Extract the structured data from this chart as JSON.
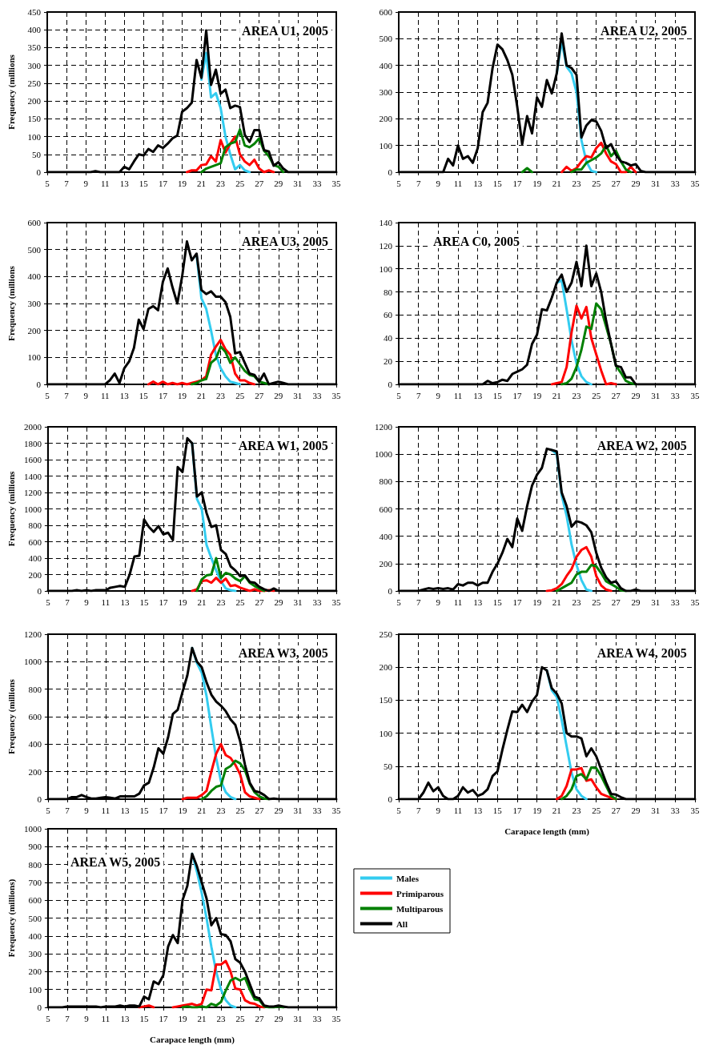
{
  "chart_data": [
    {
      "type": "line",
      "title": "AREA U1, 2005",
      "ylabel": "Frequency (millions",
      "xlim": [
        5,
        35
      ],
      "xticks": [
        5,
        7,
        9,
        11,
        13,
        15,
        17,
        19,
        21,
        23,
        25,
        27,
        29,
        31,
        33,
        35
      ],
      "ylim": [
        0,
        450
      ],
      "yticks": [
        0,
        50,
        100,
        150,
        200,
        250,
        300,
        350,
        400,
        450
      ],
      "grid": true,
      "series": [
        {
          "color": "#33ccf0",
          "x": [
            21,
            21.5,
            22,
            22.5,
            23,
            23.5,
            24,
            24.5,
            25,
            25.5,
            26
          ],
          "values": [
            260,
            335,
            210,
            222,
            180,
            100,
            50,
            8,
            20,
            5,
            0
          ]
        },
        {
          "color": "#ff0000",
          "x": [
            19.5,
            20,
            20.5,
            21,
            21.5,
            22,
            22.5,
            23,
            23.5,
            24,
            24.5,
            25,
            25.5,
            26,
            26.5,
            27,
            27.5,
            28,
            28.5
          ],
          "values": [
            0,
            5,
            5,
            20,
            22,
            45,
            30,
            90,
            55,
            80,
            100,
            50,
            30,
            20,
            35,
            10,
            0,
            5,
            0
          ]
        },
        {
          "color": "#008000",
          "x": [
            21,
            21.5,
            22,
            22.5,
            23,
            23.5,
            24,
            24.5,
            25,
            25.5,
            26,
            26.5,
            27,
            27.5,
            28,
            28.5,
            29,
            29.5
          ],
          "values": [
            0,
            10,
            15,
            20,
            25,
            70,
            80,
            85,
            120,
            75,
            70,
            80,
            95,
            60,
            45,
            20,
            15,
            0
          ]
        },
        {
          "color": "#000000",
          "x": [
            5,
            9.5,
            10,
            10.5,
            12.5,
            13,
            13.5,
            14,
            14.5,
            15,
            15.5,
            16,
            16.5,
            17,
            17.5,
            18,
            18.5,
            19,
            19.5,
            20,
            20.5,
            21,
            21.5,
            22,
            22.5,
            23,
            23.5,
            24,
            24.5,
            25,
            25.5,
            26,
            26.5,
            27,
            27.5,
            28,
            28.5,
            29,
            29.5,
            30,
            35
          ],
          "values": [
            0,
            0,
            3,
            0,
            0,
            15,
            8,
            30,
            50,
            47,
            65,
            57,
            75,
            68,
            80,
            95,
            103,
            170,
            180,
            195,
            315,
            265,
            398,
            245,
            288,
            220,
            232,
            180,
            187,
            183,
            105,
            85,
            118,
            118,
            62,
            58,
            18,
            28,
            10,
            0,
            0
          ]
        }
      ]
    },
    {
      "type": "line",
      "title": "AREA U2, 2005",
      "xlim": [
        5,
        35
      ],
      "xticks": [
        5,
        7,
        9,
        11,
        13,
        15,
        17,
        19,
        21,
        23,
        25,
        27,
        29,
        31,
        33,
        35
      ],
      "ylim": [
        0,
        600
      ],
      "yticks": [
        0,
        100,
        200,
        300,
        400,
        500,
        600
      ],
      "grid": true,
      "series": [
        {
          "color": "#33ccf0",
          "x": [
            21,
            21.5,
            22,
            22.5,
            23,
            23.5,
            24,
            24.5,
            25
          ],
          "values": [
            370,
            490,
            395,
            370,
            300,
            120,
            40,
            5,
            0
          ]
        },
        {
          "color": "#ff0000",
          "x": [
            21.5,
            22,
            22.5,
            23,
            23.5,
            24,
            24.5,
            25,
            25.5,
            26,
            26.5,
            27,
            27.5,
            28,
            28.5,
            29
          ],
          "values": [
            0,
            20,
            5,
            15,
            40,
            60,
            55,
            90,
            110,
            70,
            40,
            30,
            0,
            0,
            20,
            0
          ]
        },
        {
          "color": "#008000",
          "x": [
            17.5,
            18,
            18.5,
            19,
            22.5,
            23,
            23.5,
            24,
            24.5,
            25,
            25.5,
            26,
            26.5,
            27,
            27.5,
            28,
            28.5
          ],
          "values": [
            0,
            15,
            0,
            null,
            0,
            10,
            10,
            35,
            45,
            55,
            70,
            100,
            60,
            80,
            40,
            10,
            0
          ]
        },
        {
          "color": "#000000",
          "x": [
            5,
            9,
            9.5,
            10,
            10.5,
            11,
            11.5,
            12,
            12.5,
            13,
            13.5,
            14,
            14.5,
            15,
            15.5,
            16,
            16.5,
            17,
            17.5,
            18,
            18.5,
            19,
            19.5,
            20,
            20.5,
            21,
            21.5,
            22,
            22.5,
            23,
            23.5,
            24,
            24.5,
            25,
            25.5,
            26,
            26.5,
            27,
            27.5,
            28,
            28.5,
            29,
            29.5,
            30,
            35
          ],
          "values": [
            0,
            0,
            0,
            50,
            25,
            100,
            50,
            60,
            35,
            90,
            225,
            260,
            390,
            478,
            460,
            420,
            365,
            245,
            105,
            210,
            145,
            280,
            245,
            345,
            295,
            370,
            520,
            400,
            390,
            365,
            130,
            175,
            195,
            190,
            155,
            90,
            105,
            65,
            40,
            35,
            25,
            30,
            5,
            0,
            0
          ]
        }
      ]
    },
    {
      "type": "line",
      "title": "AREA U3, 2005",
      "ylabel": "Frequency (millions",
      "xlim": [
        5,
        35
      ],
      "xticks": [
        5,
        7,
        9,
        11,
        13,
        15,
        17,
        19,
        21,
        23,
        25,
        27,
        29,
        31,
        33,
        35
      ],
      "ylim": [
        0,
        600
      ],
      "yticks": [
        0,
        100,
        200,
        300,
        400,
        500,
        600
      ],
      "grid": true,
      "series": [
        {
          "color": "#33ccf0",
          "x": [
            20.5,
            21,
            21.5,
            22,
            22.5,
            23,
            23.5,
            24,
            24.5,
            25
          ],
          "values": [
            480,
            320,
            280,
            200,
            110,
            60,
            30,
            10,
            5,
            0
          ]
        },
        {
          "color": "#ff0000",
          "x": [
            15.5,
            16,
            16.5,
            17,
            17.5,
            18,
            18.5,
            19,
            19.5,
            20,
            20.5,
            21,
            21.5,
            22,
            22.5,
            23,
            23.5,
            24,
            24.5,
            25,
            25.5,
            26,
            26.5
          ],
          "values": [
            0,
            10,
            0,
            10,
            0,
            5,
            0,
            5,
            0,
            5,
            10,
            15,
            30,
            110,
            140,
            165,
            130,
            110,
            40,
            15,
            15,
            5,
            0
          ]
        },
        {
          "color": "#008000",
          "x": [
            20,
            20.5,
            21,
            21.5,
            22,
            22.5,
            23,
            23.5,
            24,
            24.5,
            25,
            25.5,
            26,
            26.5,
            27,
            27.5,
            28
          ],
          "values": [
            0,
            5,
            15,
            20,
            80,
            95,
            140,
            120,
            80,
            100,
            75,
            50,
            35,
            30,
            10,
            5,
            0
          ]
        },
        {
          "color": "#000000",
          "x": [
            5,
            11,
            11.5,
            12,
            12.5,
            13,
            13.5,
            14,
            14.5,
            15,
            15.5,
            16,
            16.5,
            17,
            17.5,
            18,
            18.5,
            19,
            19.5,
            20,
            20.5,
            21,
            21.5,
            22,
            22.5,
            23,
            23.5,
            24,
            24.5,
            25,
            25.5,
            26,
            26.5,
            27,
            27.5,
            28,
            28.5,
            29,
            29.5,
            30,
            35
          ],
          "values": [
            0,
            0,
            15,
            40,
            5,
            60,
            85,
            135,
            240,
            205,
            280,
            290,
            275,
            380,
            430,
            360,
            300,
            400,
            530,
            460,
            485,
            350,
            335,
            345,
            325,
            325,
            305,
            250,
            115,
            120,
            80,
            40,
            35,
            10,
            40,
            0,
            5,
            10,
            5,
            0,
            0
          ]
        }
      ]
    },
    {
      "type": "line",
      "title": "AREA C0, 2005",
      "xlim": [
        5,
        35
      ],
      "xticks": [
        5,
        7,
        9,
        11,
        13,
        15,
        17,
        19,
        21,
        23,
        25,
        27,
        29,
        31,
        33,
        35
      ],
      "ylim": [
        0,
        140
      ],
      "yticks": [
        0,
        20,
        40,
        60,
        80,
        100,
        120,
        140
      ],
      "grid": true,
      "series": [
        {
          "color": "#33ccf0",
          "x": [
            21,
            21.5,
            22,
            22.5,
            23,
            23.5,
            24,
            24.5
          ],
          "values": [
            88,
            90,
            65,
            38,
            18,
            7,
            2,
            0
          ]
        },
        {
          "color": "#ff0000",
          "x": [
            20.5,
            21,
            21.5,
            22,
            22.5,
            23,
            23.5,
            24,
            24.5,
            25,
            25.5,
            26,
            26.5,
            27
          ],
          "values": [
            0,
            1,
            2,
            15,
            45,
            68,
            57,
            67,
            40,
            26,
            12,
            0,
            1,
            0
          ]
        },
        {
          "color": "#008000",
          "x": [
            21.5,
            22,
            22.5,
            23,
            23.5,
            24,
            24.5,
            25,
            25.5,
            26,
            26.5,
            27,
            27.5,
            28,
            28.5,
            29
          ],
          "values": [
            0,
            1,
            5,
            15,
            30,
            50,
            48,
            70,
            65,
            50,
            35,
            16,
            10,
            3,
            1,
            0
          ]
        },
        {
          "color": "#000000",
          "x": [
            5,
            13.5,
            14,
            14.5,
            15,
            15.5,
            16,
            16.5,
            17,
            17.5,
            18,
            18.5,
            19,
            19.5,
            20,
            20.5,
            21,
            21.5,
            22,
            22.5,
            23,
            23.5,
            24,
            24.5,
            25,
            25.5,
            26,
            26.5,
            27,
            27.5,
            28,
            28.5,
            29,
            35
          ],
          "values": [
            0,
            0,
            3,
            1,
            2,
            4,
            3,
            9,
            11,
            13,
            17,
            35,
            43,
            65,
            64,
            75,
            88,
            95,
            80,
            88,
            106,
            85,
            120,
            85,
            96,
            80,
            55,
            35,
            16,
            15,
            6,
            6,
            0,
            0
          ]
        }
      ]
    },
    {
      "type": "line",
      "title": "AREA W1, 2005",
      "ylabel": "Frequency (millions",
      "xlim": [
        5,
        35
      ],
      "xticks": [
        5,
        7,
        9,
        11,
        13,
        15,
        17,
        19,
        21,
        23,
        25,
        27,
        29,
        31,
        33,
        35
      ],
      "ylim": [
        0,
        2000
      ],
      "yticks": [
        0,
        200,
        400,
        600,
        800,
        1000,
        1200,
        1400,
        1600,
        1800,
        2000
      ],
      "grid": true,
      "series": [
        {
          "color": "#33ccf0",
          "x": [
            20,
            20.5,
            21,
            21.5,
            22,
            22.5,
            23,
            23.5,
            24,
            24.5
          ],
          "values": [
            1800,
            1120,
            1000,
            560,
            400,
            250,
            120,
            30,
            10,
            0
          ]
        },
        {
          "color": "#ff0000",
          "x": [
            20,
            20.5,
            21,
            21.5,
            22,
            22.5,
            23,
            23.5,
            24,
            24.5,
            25,
            25.5,
            26,
            26.5,
            27,
            27.5,
            28,
            28.5
          ],
          "values": [
            0,
            20,
            120,
            130,
            100,
            160,
            100,
            150,
            60,
            70,
            40,
            20,
            0,
            20,
            0,
            0,
            10,
            0
          ]
        },
        {
          "color": "#008000",
          "x": [
            20.5,
            21,
            21.5,
            22,
            22.5,
            23,
            23.5,
            24,
            24.5,
            25,
            25.5,
            26,
            26.5,
            27,
            27.5
          ],
          "values": [
            0,
            140,
            190,
            200,
            400,
            160,
            220,
            200,
            150,
            120,
            180,
            100,
            60,
            30,
            0
          ]
        },
        {
          "color": "#000000",
          "x": [
            5,
            7,
            7.5,
            8,
            8.5,
            9,
            9.5,
            10,
            10.5,
            11,
            11.5,
            12,
            12.5,
            13,
            13.5,
            14,
            14.5,
            15,
            15.5,
            16,
            16.5,
            17,
            17.5,
            18,
            18.5,
            19,
            19.5,
            20,
            20.5,
            21,
            21.5,
            22,
            22.5,
            23,
            23.5,
            24,
            24.5,
            25,
            25.5,
            26,
            26.5,
            27,
            27.5,
            28,
            28.5,
            29,
            35
          ],
          "values": [
            0,
            0,
            0,
            10,
            0,
            10,
            0,
            10,
            10,
            10,
            40,
            50,
            60,
            50,
            200,
            420,
            430,
            870,
            780,
            720,
            790,
            690,
            710,
            620,
            1510,
            1450,
            1860,
            1800,
            1150,
            1200,
            950,
            780,
            800,
            500,
            450,
            300,
            250,
            180,
            190,
            110,
            100,
            50,
            20,
            0,
            30,
            0,
            0
          ]
        }
      ]
    },
    {
      "type": "line",
      "title": "AREA W2, 2005",
      "xlim": [
        5,
        35
      ],
      "xticks": [
        5,
        7,
        9,
        11,
        13,
        15,
        17,
        19,
        21,
        23,
        25,
        27,
        29,
        31,
        33,
        35
      ],
      "ylim": [
        0,
        1200
      ],
      "yticks": [
        0,
        200,
        400,
        600,
        800,
        1000,
        1200
      ],
      "grid": true,
      "series": [
        {
          "color": "#33ccf0",
          "x": [
            20.5,
            21,
            21.5,
            22,
            22.5,
            23,
            23.5,
            24,
            24.5
          ],
          "values": [
            1030,
            1000,
            700,
            550,
            340,
            190,
            80,
            10,
            0
          ]
        },
        {
          "color": "#ff0000",
          "x": [
            20,
            20.5,
            21,
            21.5,
            22,
            22.5,
            23,
            23.5,
            24,
            24.5,
            25,
            25.5,
            26,
            26.5
          ],
          "values": [
            0,
            5,
            20,
            50,
            110,
            160,
            250,
            300,
            320,
            250,
            110,
            40,
            10,
            0
          ]
        },
        {
          "color": "#008000",
          "x": [
            21,
            21.5,
            22,
            22.5,
            23,
            23.5,
            24,
            24.5,
            25,
            25.5,
            26,
            26.5,
            27,
            27.5,
            28
          ],
          "values": [
            0,
            20,
            40,
            60,
            120,
            140,
            140,
            190,
            180,
            130,
            70,
            50,
            30,
            5,
            0
          ]
        },
        {
          "color": "#000000",
          "x": [
            5,
            7,
            7.5,
            8,
            8.5,
            9,
            9.5,
            10,
            10.5,
            11,
            11.5,
            12,
            12.5,
            13,
            13.5,
            14,
            14.5,
            15,
            15.5,
            16,
            16.5,
            17,
            17.5,
            18,
            18.5,
            19,
            19.5,
            20,
            20.5,
            21,
            21.5,
            22,
            22.5,
            23,
            23.5,
            24,
            24.5,
            25,
            25.5,
            26,
            26.5,
            27,
            27.5,
            28,
            28.5,
            29,
            29.5,
            35
          ],
          "values": [
            0,
            0,
            10,
            20,
            15,
            20,
            15,
            20,
            10,
            50,
            40,
            60,
            60,
            40,
            60,
            60,
            140,
            200,
            280,
            380,
            320,
            530,
            440,
            620,
            770,
            850,
            900,
            1040,
            1030,
            1020,
            720,
            620,
            470,
            510,
            500,
            480,
            430,
            280,
            170,
            100,
            60,
            70,
            20,
            0,
            0,
            10,
            0,
            0
          ]
        }
      ]
    },
    {
      "type": "line",
      "title": "AREA W3, 2005",
      "ylabel": "Frequency (millions",
      "xlim": [
        5,
        35
      ],
      "xticks": [
        5,
        7,
        9,
        11,
        13,
        15,
        17,
        19,
        21,
        23,
        25,
        27,
        29,
        31,
        33,
        35
      ],
      "ylim": [
        0,
        1200
      ],
      "yticks": [
        0,
        200,
        400,
        600,
        800,
        1000,
        1200
      ],
      "grid": true,
      "series": [
        {
          "color": "#33ccf0",
          "x": [
            20,
            20.5,
            21,
            21.5,
            22,
            22.5,
            23,
            23.5,
            24,
            24.5
          ],
          "values": [
            1100,
            990,
            920,
            750,
            520,
            300,
            130,
            50,
            15,
            0
          ]
        },
        {
          "color": "#ff0000",
          "x": [
            19,
            19.5,
            20,
            20.5,
            21,
            21.5,
            22,
            22.5,
            23,
            23.5,
            24,
            24.5,
            25,
            25.5,
            26,
            26.5,
            27
          ],
          "values": [
            0,
            10,
            10,
            10,
            30,
            60,
            200,
            330,
            400,
            320,
            300,
            250,
            180,
            50,
            20,
            10,
            0
          ]
        },
        {
          "color": "#008000",
          "x": [
            21,
            21.5,
            22,
            22.5,
            23,
            23.5,
            24,
            24.5,
            25,
            25.5,
            26,
            26.5,
            27,
            27.5,
            28
          ],
          "values": [
            0,
            20,
            60,
            90,
            100,
            220,
            240,
            280,
            260,
            210,
            110,
            50,
            20,
            5,
            0
          ]
        },
        {
          "color": "#000000",
          "x": [
            5,
            7,
            7.5,
            8,
            8.5,
            9,
            9.5,
            10,
            10.5,
            11,
            11.5,
            12,
            12.5,
            13,
            13.5,
            14,
            14.5,
            15,
            15.5,
            16,
            16.5,
            17,
            17.5,
            18,
            18.5,
            19,
            19.5,
            20,
            20.5,
            21,
            21.5,
            22,
            22.5,
            23,
            23.5,
            24,
            24.5,
            25,
            25.5,
            26,
            26.5,
            27,
            27.5,
            28,
            28.5,
            29,
            35
          ],
          "values": [
            0,
            0,
            15,
            15,
            30,
            15,
            5,
            5,
            10,
            15,
            10,
            5,
            20,
            20,
            20,
            20,
            40,
            100,
            120,
            230,
            370,
            330,
            450,
            620,
            650,
            780,
            900,
            1100,
            1000,
            960,
            850,
            760,
            710,
            680,
            640,
            580,
            540,
            420,
            250,
            120,
            60,
            50,
            30,
            0,
            5,
            0,
            0
          ]
        }
      ]
    },
    {
      "type": "line",
      "title": "AREA W4, 2005",
      "xlabel": "Carapace length (mm)",
      "xlim": [
        5,
        35
      ],
      "xticks": [
        5,
        7,
        9,
        11,
        13,
        15,
        17,
        19,
        21,
        23,
        25,
        27,
        29,
        31,
        33,
        35
      ],
      "ylim": [
        0,
        250
      ],
      "yticks": [
        0,
        50,
        100,
        150,
        200,
        250
      ],
      "grid": true,
      "series": [
        {
          "color": "#33ccf0",
          "x": [
            20,
            20.5,
            21,
            21.5,
            22,
            22.5,
            23,
            23.5,
            24
          ],
          "values": [
            195,
            165,
            155,
            120,
            80,
            40,
            15,
            5,
            0
          ]
        },
        {
          "color": "#ff0000",
          "x": [
            21,
            21.5,
            22,
            22.5,
            23,
            23.5,
            24,
            24.5,
            25,
            25.5,
            26,
            26.5,
            27
          ],
          "values": [
            0,
            5,
            20,
            45,
            45,
            47,
            28,
            30,
            18,
            8,
            5,
            2,
            0
          ]
        },
        {
          "color": "#008000",
          "x": [
            21.5,
            22,
            22.5,
            23,
            23.5,
            24,
            24.5,
            25,
            25.5,
            26,
            26.5,
            27
          ],
          "values": [
            0,
            5,
            15,
            35,
            38,
            30,
            48,
            47,
            35,
            20,
            5,
            0
          ]
        },
        {
          "color": "#000000",
          "x": [
            5,
            7,
            7.5,
            8,
            8.5,
            9,
            9.5,
            10,
            10.5,
            11,
            11.5,
            12,
            12.5,
            13,
            13.5,
            14,
            14.5,
            15,
            15.5,
            16,
            16.5,
            17,
            17.5,
            18,
            18.5,
            19,
            19.5,
            20,
            20.5,
            21,
            21.5,
            22,
            22.5,
            23,
            23.5,
            24,
            24.5,
            25,
            25.5,
            26,
            26.5,
            27,
            27.5,
            28,
            35
          ],
          "values": [
            0,
            0,
            10,
            25,
            12,
            18,
            5,
            0,
            0,
            5,
            18,
            10,
            14,
            5,
            8,
            15,
            35,
            42,
            75,
            105,
            133,
            132,
            143,
            132,
            148,
            158,
            200,
            195,
            168,
            160,
            145,
            100,
            95,
            95,
            92,
            65,
            77,
            65,
            45,
            25,
            8,
            7,
            3,
            0,
            0
          ]
        }
      ]
    },
    {
      "type": "line",
      "title": "AREA W5, 2005",
      "xlabel": "Carapace length (mm)",
      "ylabel": "Frequency (millions)",
      "xlim": [
        5,
        35
      ],
      "xticks": [
        5,
        7,
        9,
        11,
        13,
        15,
        17,
        19,
        21,
        23,
        25,
        27,
        29,
        31,
        33,
        35
      ],
      "ylim": [
        0,
        1000
      ],
      "yticks": [
        0,
        100,
        200,
        300,
        400,
        500,
        600,
        700,
        800,
        900,
        1000
      ],
      "grid": true,
      "legend": "right",
      "series": [
        {
          "name": "Males",
          "color": "#33ccf0",
          "x": [
            20,
            20.5,
            21,
            21.5,
            22,
            22.5,
            23,
            23.5,
            24,
            24.5
          ],
          "values": [
            860,
            760,
            640,
            500,
            340,
            200,
            100,
            40,
            10,
            0
          ]
        },
        {
          "name": "Primiparous",
          "color": "#ff0000",
          "x": [
            14.5,
            15,
            15.5,
            16,
            17,
            18,
            18.5,
            19,
            19.5,
            20,
            20.5,
            21,
            21.5,
            22,
            22.5,
            23,
            23.5,
            24,
            24.5,
            25,
            25.5,
            26,
            26.5,
            27,
            27.5
          ],
          "values": [
            0,
            5,
            10,
            0,
            null,
            0,
            5,
            10,
            15,
            20,
            10,
            20,
            100,
            95,
            240,
            240,
            260,
            200,
            105,
            100,
            40,
            25,
            20,
            5,
            0
          ]
        },
        {
          "name": "Multiparous",
          "color": "#008000",
          "x": [
            19,
            19.5,
            20,
            20.5,
            21,
            21.5,
            22,
            22.5,
            23,
            23.5,
            24,
            24.5,
            25,
            25.5,
            26,
            26.5,
            27,
            27.5,
            28,
            28.5,
            29,
            29.5
          ],
          "values": [
            0,
            5,
            0,
            0,
            5,
            0,
            20,
            10,
            30,
            95,
            150,
            165,
            150,
            165,
            100,
            45,
            40,
            5,
            0,
            0,
            5,
            0
          ]
        },
        {
          "name": "All",
          "color": "#000000",
          "x": [
            5,
            6.5,
            7,
            7.5,
            8,
            8.5,
            9,
            9.5,
            10,
            10.5,
            11,
            11.5,
            12,
            12.5,
            13,
            13.5,
            14,
            14.5,
            15,
            15.5,
            16,
            16.5,
            17,
            17.5,
            18,
            18.5,
            19,
            19.5,
            20,
            20.5,
            21,
            21.5,
            22,
            22.5,
            23,
            23.5,
            24,
            24.5,
            25,
            25.5,
            26,
            26.5,
            27,
            27.5,
            28,
            28.5,
            29,
            29.5,
            30,
            35
          ],
          "values": [
            0,
            0,
            5,
            5,
            5,
            5,
            5,
            5,
            5,
            0,
            5,
            5,
            5,
            10,
            5,
            10,
            10,
            5,
            60,
            45,
            145,
            130,
            180,
            340,
            405,
            360,
            600,
            680,
            860,
            790,
            700,
            610,
            460,
            500,
            410,
            405,
            370,
            270,
            250,
            200,
            130,
            60,
            50,
            10,
            5,
            5,
            10,
            5,
            0,
            0
          ]
        }
      ]
    }
  ]
}
